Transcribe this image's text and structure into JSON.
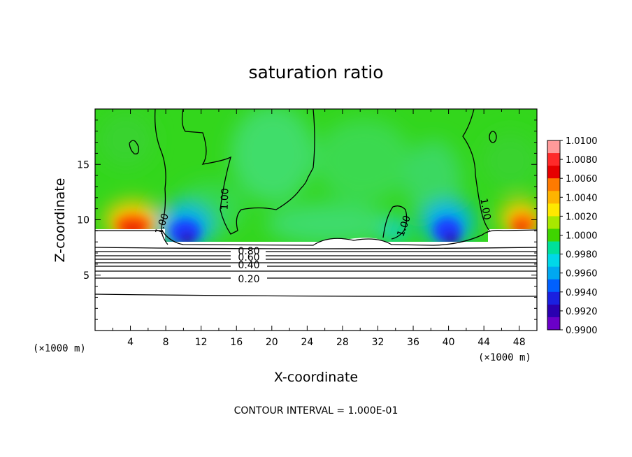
{
  "chart_data": {
    "type": "heatmap",
    "title": "saturation ratio",
    "xlabel": "X-coordinate",
    "ylabel": "Z-coordinate",
    "x_unit_label": "(×1000 m)",
    "x_unit_label_right": "(×1000 m)",
    "xlim": [
      0,
      50
    ],
    "ylim": [
      0,
      20
    ],
    "x_ticks": [
      4,
      8,
      12,
      16,
      20,
      24,
      28,
      32,
      36,
      40,
      44,
      48
    ],
    "y_ticks": [
      5,
      10,
      15
    ],
    "colorbar": {
      "min": 0.99,
      "max": 1.01,
      "labels": [
        "1.0100",
        "1.0080",
        "1.0060",
        "1.0040",
        "1.0020",
        "1.0000",
        "0.9980",
        "0.9960",
        "0.9940",
        "0.9920",
        "0.9900"
      ],
      "colors": [
        "#ff9a9a",
        "#ff2a2a",
        "#e60000",
        "#ff7a00",
        "#ffb400",
        "#ffe800",
        "#a8e800",
        "#3fd400",
        "#00e09a",
        "#00d8e8",
        "#00a8f0",
        "#0060ff",
        "#1a20e0",
        "#2a00b0",
        "#6a00c8"
      ]
    },
    "contour_labels": [
      "1.00",
      "1.00",
      "1.00",
      "1.00",
      "0.80",
      "0.60",
      "0.40",
      "0.20"
    ],
    "footer": "CONTOUR INTERVAL = 1.000E-01"
  }
}
